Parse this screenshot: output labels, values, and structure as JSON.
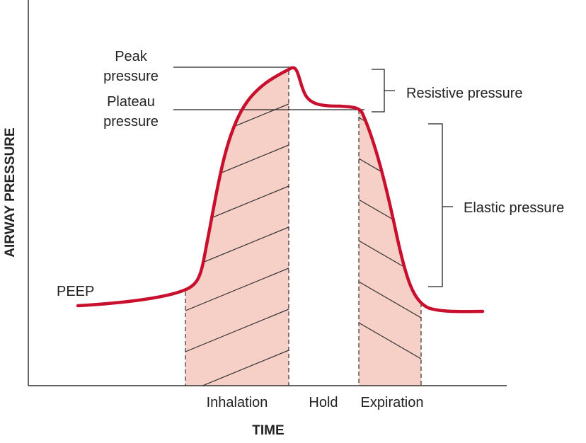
{
  "axes": {
    "y_label": "AIRWAY PRESSURE",
    "x_label": "TIME"
  },
  "annotations": {
    "peak": [
      "Peak",
      "pressure"
    ],
    "plateau": [
      "Plateau",
      "pressure"
    ],
    "peep": "PEEP",
    "resistive": "Resistive pressure",
    "elastic": "Elastic pressure"
  },
  "phases": [
    "Inhalation",
    "Hold",
    "Expiration"
  ]
}
